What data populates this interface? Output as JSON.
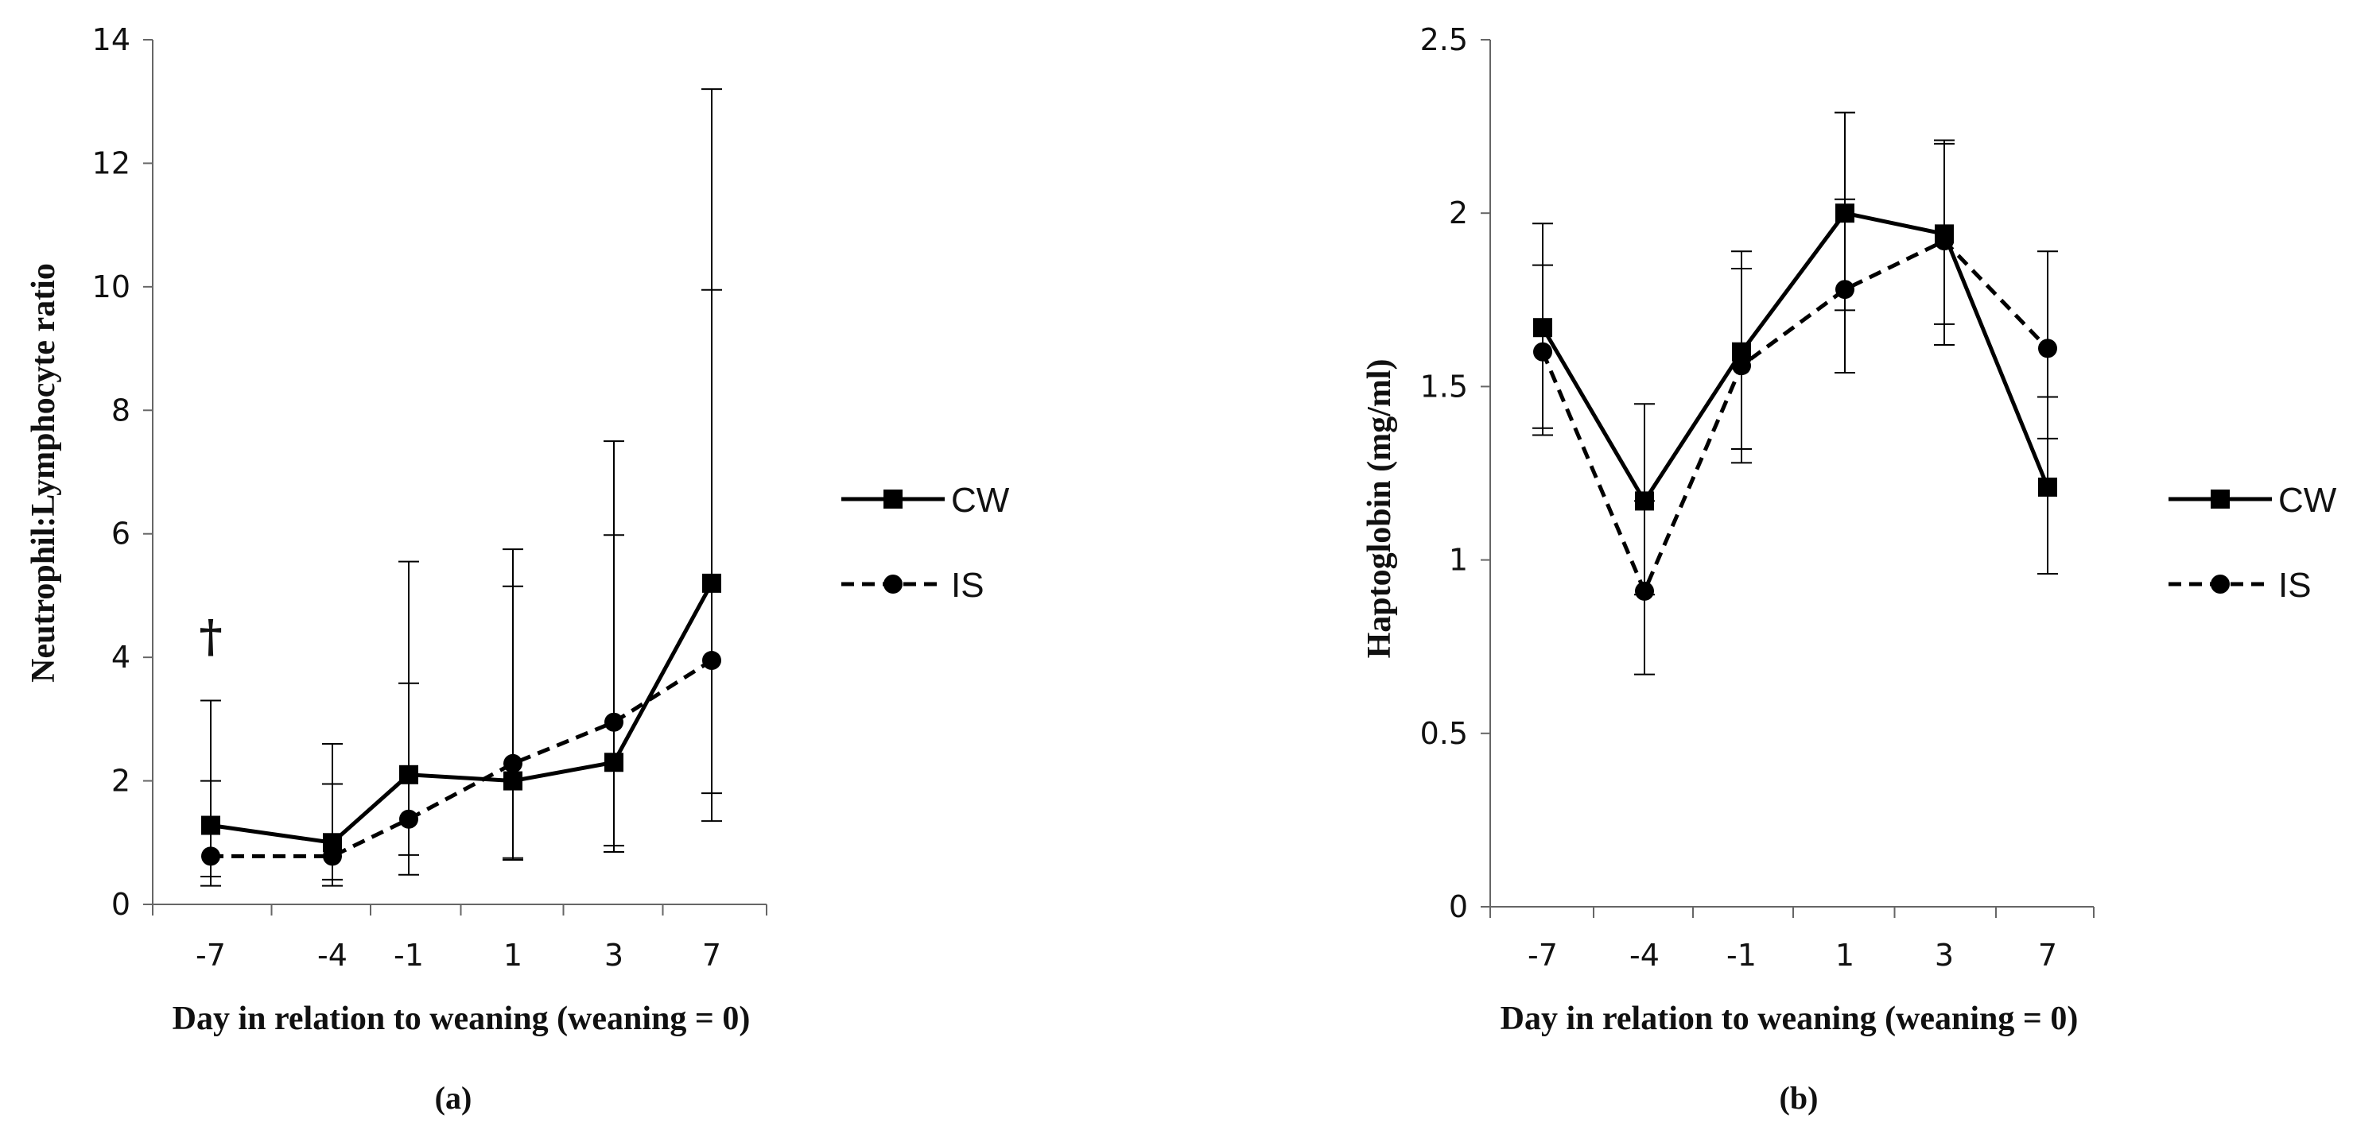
{
  "chart_data": [
    {
      "type": "line",
      "panel_label": "(a)",
      "xlabel": "Day in relation to weaning (weaning = 0)",
      "ylabel": "Neutrophil:Lymphocyte ratio",
      "categories": [
        "-7",
        "-4",
        "-1",
        "1",
        "3",
        "7"
      ],
      "ylim": [
        0,
        14
      ],
      "yticks": [
        "0",
        "2",
        "4",
        "6",
        "8",
        "10",
        "12",
        "14"
      ],
      "legend_position": "right",
      "annotation": "†",
      "annotation_category": "-7",
      "series": [
        {
          "name": "CW",
          "style": "solid",
          "marker": "square",
          "values": [
            1.28,
            1.0,
            2.1,
            2.0,
            2.3,
            5.2
          ],
          "err_low": [
            0.45,
            0.4,
            0.8,
            0.75,
            0.85,
            1.35
          ],
          "err_high": [
            3.3,
            2.6,
            5.55,
            5.75,
            7.5,
            13.2
          ]
        },
        {
          "name": "IS",
          "style": "dashed",
          "marker": "circle",
          "values": [
            0.78,
            0.78,
            1.38,
            2.28,
            2.95,
            3.95
          ],
          "err_low": [
            0.3,
            0.3,
            0.48,
            0.72,
            0.95,
            1.8
          ],
          "err_high": [
            2.0,
            1.95,
            3.58,
            5.15,
            5.98,
            9.95
          ]
        }
      ]
    },
    {
      "type": "line",
      "panel_label": "(b)",
      "xlabel": "Day in relation to weaning (weaning = 0)",
      "ylabel": "Haptoglobin (mg/ml)",
      "categories": [
        "-7",
        "-4",
        "-1",
        "1",
        "3",
        "7"
      ],
      "ylim": [
        0,
        2.5
      ],
      "yticks": [
        "0",
        "0.5",
        "1",
        "1.5",
        "2",
        "2.5"
      ],
      "legend_position": "right",
      "series": [
        {
          "name": "CW",
          "style": "solid",
          "marker": "square",
          "values": [
            1.67,
            1.17,
            1.6,
            2.0,
            1.94,
            1.21
          ],
          "err_low": [
            1.38,
            0.9,
            1.32,
            1.72,
            1.68,
            0.96
          ],
          "err_high": [
            1.97,
            1.45,
            1.89,
            2.29,
            2.2,
            1.47
          ]
        },
        {
          "name": "IS",
          "style": "dashed",
          "marker": "circle",
          "values": [
            1.6,
            0.91,
            1.56,
            1.78,
            1.92,
            1.61
          ],
          "err_low": [
            1.36,
            0.67,
            1.28,
            1.54,
            1.62,
            1.35
          ],
          "err_high": [
            1.85,
            1.17,
            1.84,
            2.04,
            2.21,
            1.89
          ]
        }
      ]
    }
  ]
}
